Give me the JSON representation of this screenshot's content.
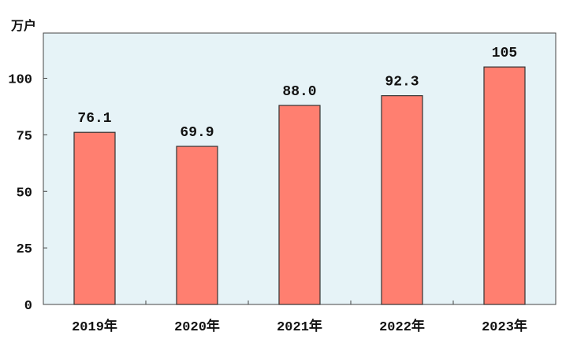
{
  "chart_data": {
    "type": "bar",
    "ylabel": "万户",
    "categories": [
      "2019年",
      "2020年",
      "2021年",
      "2022年",
      "2023年"
    ],
    "values": [
      76.1,
      69.9,
      88.0,
      92.3,
      105
    ],
    "data_labels": [
      "76.1",
      "69.9",
      "88.0",
      "92.3",
      "105"
    ],
    "ylim": [
      0,
      120
    ],
    "yticks": [
      0,
      25,
      50,
      75,
      100
    ],
    "grid": false,
    "legend": "none",
    "colors": {
      "bar": "#FF7F70",
      "bar_edge": "#333333",
      "plot_background": "#E6F3F7",
      "plot_border": "#444444"
    }
  }
}
